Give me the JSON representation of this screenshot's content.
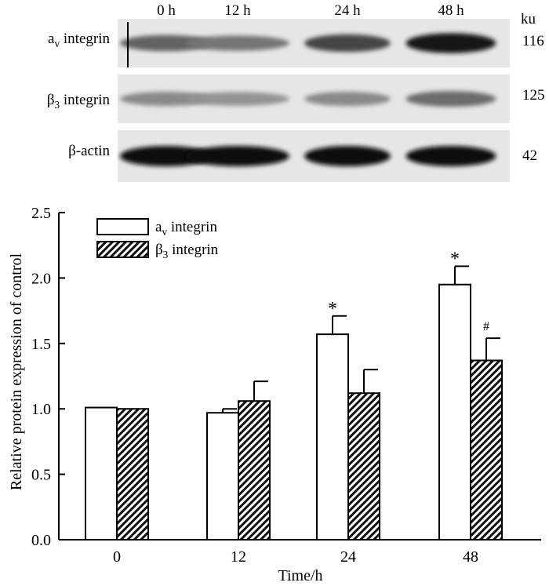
{
  "blot": {
    "time_labels": [
      "0 h",
      "12 h",
      "24 h",
      "48 h"
    ],
    "unit_label": "ku",
    "rows": [
      {
        "name_main": "a",
        "name_sub": "v",
        "name_rest": " integrin",
        "size": "116",
        "band_intensity": [
          0.55,
          0.45,
          0.7,
          0.95
        ]
      },
      {
        "name_main": "β",
        "name_sub": "3",
        "name_rest": " integrin",
        "size": "125",
        "band_intensity": [
          0.35,
          0.3,
          0.35,
          0.5
        ]
      },
      {
        "name_main": "β-actin",
        "name_sub": "",
        "name_rest": "",
        "size": "42",
        "band_intensity": [
          1.0,
          1.0,
          1.0,
          1.0
        ]
      }
    ]
  },
  "chart_data": {
    "type": "bar",
    "categories": [
      "0",
      "12",
      "24",
      "48"
    ],
    "xlabel": "Time/h",
    "ylabel": "Relative protein expression of control",
    "ylim": [
      0,
      2.5
    ],
    "yticks": [
      "0.0",
      "0.5",
      "1.0",
      "1.5",
      "2.0",
      "2.5"
    ],
    "grid": false,
    "legend_position": "top-left",
    "series": [
      {
        "name_main": "a",
        "name_sub": "v",
        "name_rest": " integrin",
        "fill": "white",
        "values": [
          1.01,
          0.97,
          1.57,
          1.95
        ],
        "errors": [
          0,
          0.03,
          0.14,
          0.14
        ],
        "annotations": [
          "",
          "",
          "*",
          "*"
        ]
      },
      {
        "name_main": "β",
        "name_sub": "3",
        "name_rest": " integrin",
        "fill": "hatched",
        "values": [
          1.0,
          1.06,
          1.12,
          1.37
        ],
        "errors": [
          0,
          0.15,
          0.18,
          0.17
        ],
        "annotations": [
          "",
          "",
          "",
          "#"
        ]
      }
    ]
  }
}
